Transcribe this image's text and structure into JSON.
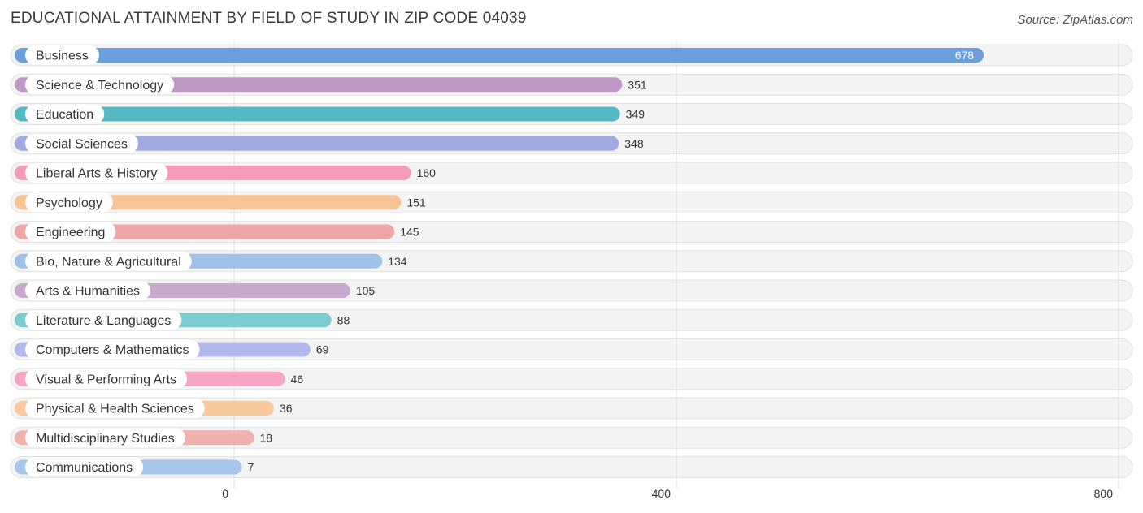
{
  "title": "EDUCATIONAL ATTAINMENT BY FIELD OF STUDY IN ZIP CODE 04039",
  "source": "Source: ZipAtlas.com",
  "chart_data": {
    "type": "bar",
    "orientation": "horizontal",
    "title": "EDUCATIONAL ATTAINMENT BY FIELD OF STUDY IN ZIP CODE 04039",
    "xlabel": "",
    "ylabel": "",
    "xlim": [
      0,
      800
    ],
    "ticks": [
      0,
      400,
      800
    ],
    "grid": true,
    "categories": [
      "Business",
      "Science & Technology",
      "Education",
      "Social Sciences",
      "Liberal Arts & History",
      "Psychology",
      "Engineering",
      "Bio, Nature & Agricultural",
      "Arts & Humanities",
      "Literature & Languages",
      "Computers & Mathematics",
      "Visual & Performing Arts",
      "Physical & Health Sciences",
      "Multidisciplinary Studies",
      "Communications"
    ],
    "values": [
      678,
      351,
      349,
      348,
      160,
      151,
      145,
      134,
      105,
      88,
      69,
      46,
      36,
      18,
      7
    ],
    "colors": [
      "#6a9fdc",
      "#bf99c6",
      "#55b9c4",
      "#a1a9e2",
      "#f59ab8",
      "#f8c495",
      "#eda5a5",
      "#9fc1e8",
      "#c9a8cf",
      "#7ccbcf",
      "#b2b9ea",
      "#f6a6c2",
      "#f8c99e",
      "#f0b0ae",
      "#a7c6ec"
    ]
  }
}
